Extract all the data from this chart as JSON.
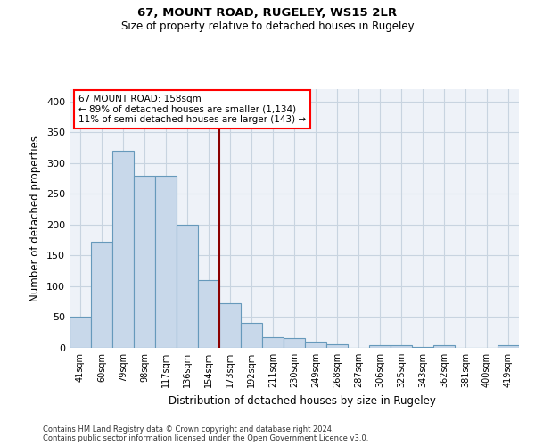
{
  "title1": "67, MOUNT ROAD, RUGELEY, WS15 2LR",
  "title2": "Size of property relative to detached houses in Rugeley",
  "xlabel": "Distribution of detached houses by size in Rugeley",
  "ylabel": "Number of detached properties",
  "bins": [
    "41sqm",
    "60sqm",
    "79sqm",
    "98sqm",
    "117sqm",
    "136sqm",
    "154sqm",
    "173sqm",
    "192sqm",
    "211sqm",
    "230sqm",
    "249sqm",
    "268sqm",
    "287sqm",
    "306sqm",
    "325sqm",
    "343sqm",
    "362sqm",
    "381sqm",
    "400sqm",
    "419sqm"
  ],
  "values": [
    50,
    172,
    320,
    280,
    280,
    200,
    110,
    73,
    40,
    17,
    16,
    10,
    6,
    0,
    5,
    5,
    1,
    5,
    0,
    0,
    4
  ],
  "bar_color": "#c8d8ea",
  "bar_edge_color": "#6699bb",
  "annotation_text": "67 MOUNT ROAD: 158sqm\n← 89% of detached houses are smaller (1,134)\n11% of semi-detached houses are larger (143) →",
  "annotation_box_color": "white",
  "annotation_box_edge": "red",
  "ylim": [
    0,
    420
  ],
  "yticks": [
    0,
    50,
    100,
    150,
    200,
    250,
    300,
    350,
    400
  ],
  "footnote1": "Contains HM Land Registry data © Crown copyright and database right 2024.",
  "footnote2": "Contains public sector information licensed under the Open Government Licence v3.0.",
  "grid_color": "#c8d4e0",
  "bg_color": "#eef2f8"
}
